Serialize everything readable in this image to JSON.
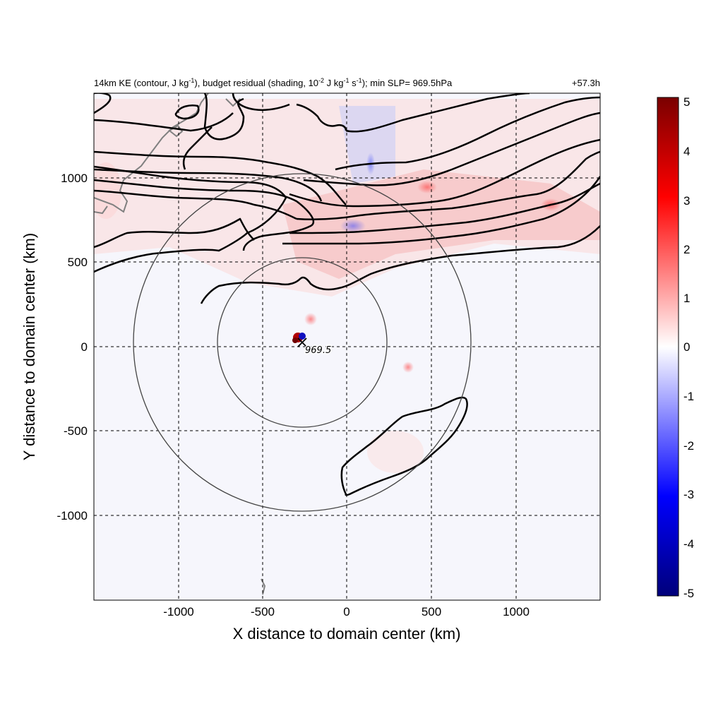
{
  "chart_data": {
    "type": "heatmap",
    "title_parts": {
      "p1": "14km KE (contour, J kg",
      "s1": "-1",
      "p2": "), budget residual (shading, 10",
      "s2": "-2",
      "p3": " J kg",
      "s3": "-1",
      "p4": " s",
      "s4": "-1",
      "p5": "); min SLP= 969.5hPa"
    },
    "time_label": "+57.3h",
    "xlabel": "X distance to domain center (km)",
    "ylabel": "Y distance to domain center (km)",
    "xlim": [
      -1500,
      1500
    ],
    "ylim": [
      -1500,
      1500
    ],
    "xticks": [
      -1000,
      -500,
      0,
      500,
      1000
    ],
    "yticks": [
      1000,
      500,
      0,
      -500,
      -1000
    ],
    "grid": true,
    "colorbar": {
      "min": -5,
      "max": 5,
      "ticks": [
        5,
        4,
        3,
        2,
        1,
        0,
        -1,
        -2,
        -3,
        -4,
        -5
      ],
      "colors": [
        "#00007a",
        "#0000ff",
        "#ffffff",
        "#ff0000",
        "#7a0000"
      ]
    },
    "storm_center": {
      "x": -265,
      "y": 25,
      "label": "969.5"
    },
    "circles": [
      {
        "center_x": -265,
        "center_y": 25,
        "radius_km": 500
      },
      {
        "center_x": -265,
        "center_y": 25,
        "radius_km": 1000
      }
    ],
    "colors": {
      "contour": "#000000",
      "coastline": "#808080",
      "positive": "#ff0000",
      "negative": "#0000ff"
    }
  }
}
